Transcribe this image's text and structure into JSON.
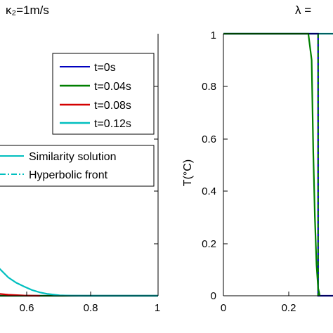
{
  "titles": {
    "left_title": "κ₂=1m/s",
    "right_title": "λ ="
  },
  "colors": {
    "t0": "#0000bf",
    "t004": "#007f00",
    "t008": "#d40000",
    "t012": "#00bfbf"
  },
  "chart_data": [
    {
      "type": "line",
      "title": "κ₂=1m/s",
      "xlim": [
        0.5,
        1.0
      ],
      "ylim": [
        0,
        1
      ],
      "xticks": [
        0.6,
        0.8,
        1
      ],
      "xticklabels": [
        "0.6",
        "0.8",
        "1"
      ],
      "legend_placement": "top-right",
      "legend": [
        {
          "name": "t=0s",
          "color": "#0000bf",
          "style": "solid"
        },
        {
          "name": "t=0.04s",
          "color": "#007f00",
          "style": "solid"
        },
        {
          "name": "t=0.08s",
          "color": "#d40000",
          "style": "solid"
        },
        {
          "name": "t=0.12s",
          "color": "#00bfbf",
          "style": "solid"
        }
      ],
      "legend2": [
        {
          "name": "Similarity solution",
          "color": "#00bfbf",
          "style": "solid"
        },
        {
          "name": "Hyperbolic front",
          "color": "#00bfbf",
          "style": "dashdot"
        }
      ],
      "series": [
        {
          "name": "t=0s",
          "color": "#0000bf",
          "x": [
            0.5,
            1.0
          ],
          "y": [
            0,
            0
          ]
        },
        {
          "name": "t=0.04s",
          "color": "#007f00",
          "x": [
            0.5,
            1.0
          ],
          "y": [
            0,
            0
          ]
        },
        {
          "name": "t=0.08s",
          "color": "#d40000",
          "x": [
            0.5,
            0.52,
            0.55,
            0.58,
            0.62,
            0.66,
            0.7
          ],
          "y": [
            0.05,
            0.035,
            0.02,
            0.01,
            0.004,
            0.001,
            0
          ]
        },
        {
          "name": "t=0.12s",
          "color": "#00bfbf",
          "x": [
            0.5,
            0.52,
            0.54,
            0.56,
            0.58,
            0.6,
            0.62,
            0.64,
            0.66,
            0.68,
            0.7,
            0.72,
            0.75,
            0.78,
            0.82,
            1.0
          ],
          "y": [
            0.27,
            0.25,
            0.21,
            0.17,
            0.13,
            0.1,
            0.07,
            0.05,
            0.035,
            0.022,
            0.013,
            0.007,
            0.002,
            0.0005,
            0,
            0
          ]
        }
      ]
    },
    {
      "type": "line",
      "title": "λ =",
      "ylabel": "T(°C)",
      "xlim": [
        0,
        0.4
      ],
      "ylim": [
        0,
        1
      ],
      "xticks": [
        0,
        0.2
      ],
      "xticklabels": [
        "0",
        "0.2"
      ],
      "yticks": [
        0,
        0.2,
        0.4,
        0.6,
        0.8,
        1
      ],
      "yticklabels": [
        "0",
        "0.2",
        "0.4",
        "0.6",
        "0.8",
        "1"
      ],
      "series": [
        {
          "name": "t=0s",
          "color": "#0000bf",
          "x": [
            0,
            0.29,
            0.29,
            0.4
          ],
          "y": [
            1,
            1,
            0,
            0
          ]
        },
        {
          "name": "t=0.04s",
          "color": "#007f00",
          "x": [
            0,
            0.26,
            0.27,
            0.275,
            0.28,
            0.285,
            0.29,
            0.295
          ],
          "y": [
            1,
            1,
            0.9,
            0.55,
            0.3,
            0.12,
            0.03,
            0
          ]
        },
        {
          "name": "t=0.12s",
          "color": "#00bfbf",
          "x": [
            0,
            0.4
          ],
          "y": [
            1,
            1
          ]
        },
        {
          "name": "Hyperbolic front",
          "color": "#007f00",
          "style": "dashed",
          "x": [
            0.29,
            0.29
          ],
          "y": [
            1,
            0
          ]
        }
      ]
    }
  ]
}
